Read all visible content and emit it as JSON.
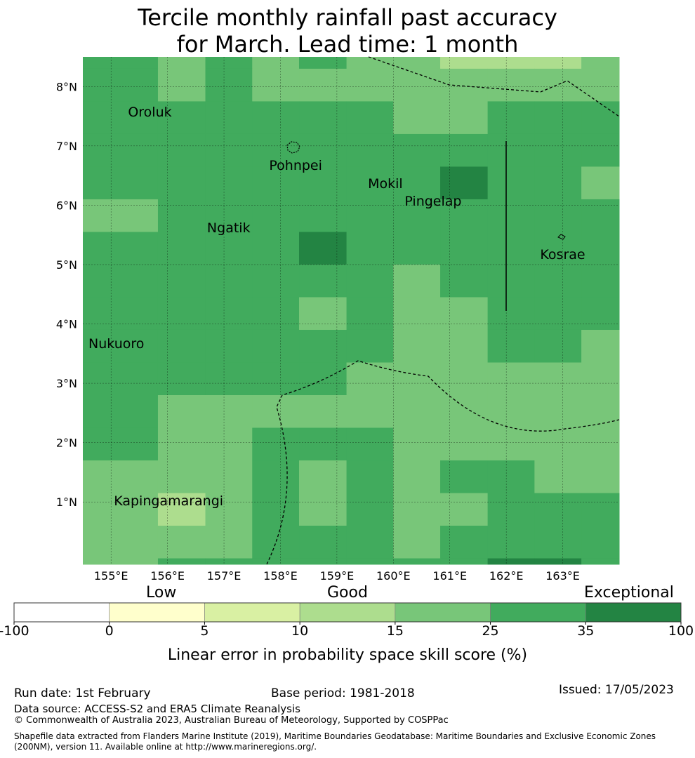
{
  "title": {
    "line1": "Tercile monthly rainfall past accuracy",
    "line2": "for March. Lead time: 1 month"
  },
  "map": {
    "lon_range": [
      154.5,
      164.0
    ],
    "lat_range": [
      -0.05,
      8.5
    ],
    "lon_ticks": [
      {
        "value": 155,
        "label": "155°E"
      },
      {
        "value": 156,
        "label": "156°E"
      },
      {
        "value": 157,
        "label": "157°E"
      },
      {
        "value": 158,
        "label": "158°E"
      },
      {
        "value": 159,
        "label": "159°E"
      },
      {
        "value": 160,
        "label": "160°E"
      },
      {
        "value": 161,
        "label": "161°E"
      },
      {
        "value": 162,
        "label": "162°E"
      },
      {
        "value": 163,
        "label": "163°E"
      }
    ],
    "lat_ticks": [
      {
        "value": 1,
        "label": "1°N"
      },
      {
        "value": 2,
        "label": "2°N"
      },
      {
        "value": 3,
        "label": "3°N"
      },
      {
        "value": 4,
        "label": "4°N"
      },
      {
        "value": 5,
        "label": "5°N"
      },
      {
        "value": 6,
        "label": "6°N"
      },
      {
        "value": 7,
        "label": "7°N"
      },
      {
        "value": 8,
        "label": "8°N"
      }
    ],
    "grid_lon_edges": [
      154.5,
      155.83,
      156.67,
      157.5,
      158.33,
      159.17,
      160.0,
      160.83,
      161.67,
      162.5,
      163.33,
      164.0
    ],
    "grid_lat_edges": [
      8.5,
      8.3,
      7.75,
      7.2,
      6.65,
      6.1,
      5.55,
      5.0,
      4.45,
      3.9,
      3.35,
      2.8,
      2.25,
      1.7,
      1.15,
      0.6,
      0.05,
      -0.05
    ],
    "skill_grid": [
      [
        "25-35",
        "15-25",
        "25-35",
        "15-25",
        "25-35",
        "15-25",
        "15-25",
        "10-15",
        "10-15",
        "10-15",
        "15-25"
      ],
      [
        "25-35",
        "15-25",
        "25-35",
        "15-25",
        "15-25",
        "15-25",
        "15-25",
        "15-25",
        "15-25",
        "15-25",
        "15-25"
      ],
      [
        "25-35",
        "25-35",
        "25-35",
        "25-35",
        "25-35",
        "25-35",
        "15-25",
        "15-25",
        "25-35",
        "25-35",
        "25-35"
      ],
      [
        "25-35",
        "25-35",
        "25-35",
        "25-35",
        "25-35",
        "25-35",
        "25-35",
        "25-35",
        "25-35",
        "25-35",
        "25-35"
      ],
      [
        "25-35",
        "25-35",
        "25-35",
        "25-35",
        "25-35",
        "25-35",
        "25-35",
        "35-100",
        "25-35",
        "25-35",
        "15-25"
      ],
      [
        "15-25",
        "25-35",
        "25-35",
        "25-35",
        "25-35",
        "25-35",
        "25-35",
        "25-35",
        "25-35",
        "25-35",
        "25-35"
      ],
      [
        "25-35",
        "25-35",
        "25-35",
        "25-35",
        "35-100",
        "25-35",
        "25-35",
        "25-35",
        "25-35",
        "25-35",
        "25-35"
      ],
      [
        "25-35",
        "25-35",
        "25-35",
        "25-35",
        "25-35",
        "25-35",
        "15-25",
        "25-35",
        "25-35",
        "25-35",
        "25-35"
      ],
      [
        "25-35",
        "25-35",
        "25-35",
        "25-35",
        "15-25",
        "25-35",
        "15-25",
        "15-25",
        "25-35",
        "25-35",
        "25-35"
      ],
      [
        "25-35",
        "25-35",
        "25-35",
        "25-35",
        "25-35",
        "25-35",
        "15-25",
        "15-25",
        "25-35",
        "25-35",
        "15-25"
      ],
      [
        "25-35",
        "25-35",
        "25-35",
        "25-35",
        "25-35",
        "15-25",
        "15-25",
        "15-25",
        "15-25",
        "15-25",
        "15-25"
      ],
      [
        "25-35",
        "15-25",
        "15-25",
        "15-25",
        "15-25",
        "15-25",
        "15-25",
        "15-25",
        "15-25",
        "15-25",
        "15-25"
      ],
      [
        "25-35",
        "15-25",
        "15-25",
        "25-35",
        "25-35",
        "25-35",
        "15-25",
        "15-25",
        "15-25",
        "15-25",
        "15-25"
      ],
      [
        "15-25",
        "15-25",
        "15-25",
        "25-35",
        "15-25",
        "25-35",
        "15-25",
        "25-35",
        "25-35",
        "15-25",
        "15-25"
      ],
      [
        "15-25",
        "10-15",
        "15-25",
        "25-35",
        "15-25",
        "25-35",
        "15-25",
        "15-25",
        "25-35",
        "25-35",
        "25-35"
      ],
      [
        "15-25",
        "15-25",
        "15-25",
        "25-35",
        "25-35",
        "25-35",
        "15-25",
        "25-35",
        "25-35",
        "25-35",
        "25-35"
      ],
      [
        "15-25",
        "25-35",
        "25-35",
        "25-35",
        "25-35",
        "25-35",
        "25-35",
        "25-35",
        "35-100",
        "35-100",
        "25-35"
      ]
    ],
    "places": [
      {
        "name": "Oroluk",
        "lon": 155.3,
        "lat": 7.55
      },
      {
        "name": "Pohnpei",
        "lon": 157.8,
        "lat": 6.65
      },
      {
        "name": "Mokil",
        "lon": 159.55,
        "lat": 6.35
      },
      {
        "name": "Pingelap",
        "lon": 160.2,
        "lat": 6.05
      },
      {
        "name": "Ngatik",
        "lon": 156.7,
        "lat": 5.6
      },
      {
        "name": "Kosrae",
        "lon": 162.6,
        "lat": 5.15
      },
      {
        "name": "Nukuoro",
        "lon": 154.6,
        "lat": 3.65
      },
      {
        "name": "Kapingamarangi",
        "lon": 155.05,
        "lat": 1.0
      }
    ],
    "colors": {
      "0-5": "#ffffcc",
      "5-10": "#d9f0a3",
      "10-15": "#addd8e",
      "15-25": "#78c679",
      "25-35": "#41ab5d",
      "35-100": "#238443",
      "boundary": "#000000",
      "gridline": "#000000"
    }
  },
  "legend": {
    "category_low": "Low",
    "category_good": "Good",
    "category_exceptional": "Exceptional",
    "bins": [
      {
        "range": "-100-0",
        "color": "#ffffff"
      },
      {
        "range": "0-5",
        "color": "#ffffcc"
      },
      {
        "range": "5-10",
        "color": "#d9f0a3"
      },
      {
        "range": "10-15",
        "color": "#addd8e"
      },
      {
        "range": "15-25",
        "color": "#78c679"
      },
      {
        "range": "25-35",
        "color": "#41ab5d"
      },
      {
        "range": "35-100",
        "color": "#238443"
      }
    ],
    "tick_labels": [
      "-100",
      "0",
      "5",
      "10",
      "15",
      "25",
      "35",
      "100"
    ],
    "axis_label": "Linear error in probability space skill score (%)"
  },
  "footer": {
    "run_date": "Run date: 1st February",
    "base_period": "Base period: 1981-2018",
    "issued": "Issued: 17/05/2023",
    "data_source": "Data source: ACCESS-S2 and ERA5 Climate Reanalysis",
    "copyright": "© Commonwealth of Australia 2023, Australian Bureau of Meteorology, Supported by COSPPac",
    "shapefile": "Shapefile data extracted from Flanders Marine Institute (2019), Maritime Boundaries Geodatabase: Maritime Boundaries and Exclusive Economic Zones (200NM), version 11. Available online at http://www.marineregions.org/."
  }
}
